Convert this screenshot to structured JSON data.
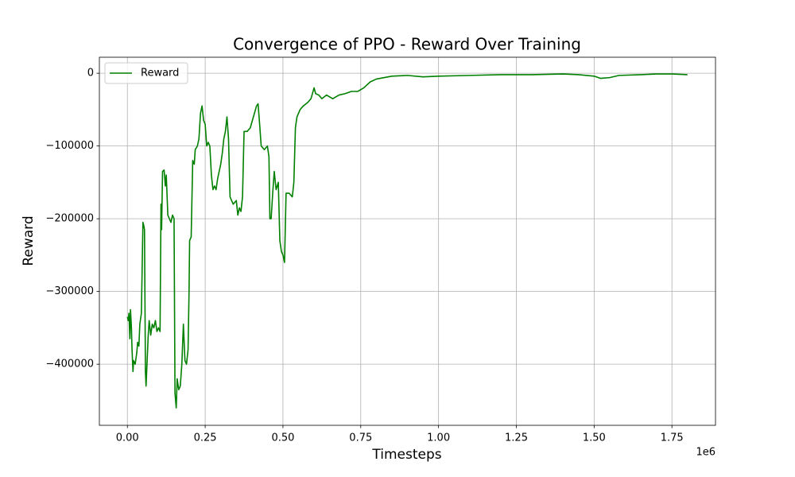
{
  "chart_data": {
    "type": "line",
    "title": "Convergence of PPO - Reward Over Training",
    "x_label": "Timesteps",
    "y_label": "Reward",
    "x_offset_label": "1e6",
    "grid": true,
    "legend": "upper left",
    "xlim": [
      -90000,
      1890000
    ],
    "ylim": [
      -484000,
      22000
    ],
    "xticks": [
      {
        "value": 0,
        "label": "0.00"
      },
      {
        "value": 250000,
        "label": "0.25"
      },
      {
        "value": 500000,
        "label": "0.50"
      },
      {
        "value": 750000,
        "label": "0.75"
      },
      {
        "value": 1000000,
        "label": "1.00"
      },
      {
        "value": 1250000,
        "label": "1.25"
      },
      {
        "value": 1500000,
        "label": "1.50"
      },
      {
        "value": 1750000,
        "label": "1.75"
      }
    ],
    "yticks": [
      0,
      {
        "value": -100000,
        "label": "−100000"
      },
      {
        "value": -200000,
        "label": "−200000"
      },
      {
        "value": -300000,
        "label": "−300000"
      },
      {
        "value": -400000,
        "label": "−400000"
      }
    ],
    "x": [
      0,
      3000,
      5000,
      8000,
      10000,
      13000,
      15000,
      18000,
      20000,
      25000,
      30000,
      33000,
      37000,
      40000,
      45000,
      50000,
      53000,
      55000,
      58000,
      60000,
      63000,
      67000,
      70000,
      75000,
      80000,
      85000,
      90000,
      95000,
      100000,
      105000,
      108000,
      110000,
      113000,
      118000,
      122000,
      125000,
      130000,
      140000,
      145000,
      150000,
      153000,
      157000,
      160000,
      165000,
      170000,
      175000,
      180000,
      185000,
      190000,
      195000,
      198000,
      200000,
      205000,
      210000,
      215000,
      218000,
      225000,
      230000,
      235000,
      240000,
      245000,
      250000,
      255000,
      260000,
      265000,
      270000,
      275000,
      280000,
      285000,
      290000,
      300000,
      305000,
      310000,
      315000,
      320000,
      325000,
      330000,
      340000,
      350000,
      355000,
      360000,
      365000,
      370000,
      375000,
      385000,
      395000,
      405000,
      415000,
      420000,
      425000,
      430000,
      440000,
      450000,
      455000,
      458000,
      462000,
      467000,
      472000,
      478000,
      485000,
      490000,
      495000,
      500000,
      505000,
      510000,
      520000,
      530000,
      535000,
      540000,
      545000,
      555000,
      565000,
      580000,
      590000,
      600000,
      605000,
      615000,
      625000,
      640000,
      660000,
      680000,
      700000,
      720000,
      740000,
      760000,
      780000,
      800000,
      850000,
      900000,
      950000,
      1000000,
      1100000,
      1200000,
      1300000,
      1400000,
      1450000,
      1500000,
      1520000,
      1550000,
      1580000,
      1650000,
      1700000,
      1750000,
      1800000
    ],
    "series": [
      {
        "name": "Reward",
        "color": "#008000",
        "values": [
          -335000,
          -340000,
          -330000,
          -365000,
          -325000,
          -350000,
          -380000,
          -410000,
          -395000,
          -400000,
          -385000,
          -370000,
          -375000,
          -345000,
          -330000,
          -205000,
          -210000,
          -215000,
          -410000,
          -430000,
          -400000,
          -360000,
          -340000,
          -360000,
          -345000,
          -350000,
          -340000,
          -355000,
          -350000,
          -355000,
          -180000,
          -215000,
          -135000,
          -133000,
          -155000,
          -140000,
          -195000,
          -205000,
          -195000,
          -200000,
          -440000,
          -460000,
          -420000,
          -435000,
          -430000,
          -400000,
          -345000,
          -395000,
          -400000,
          -380000,
          -305000,
          -230000,
          -225000,
          -120000,
          -125000,
          -105000,
          -100000,
          -90000,
          -55000,
          -45000,
          -65000,
          -70000,
          -100000,
          -95000,
          -100000,
          -140000,
          -160000,
          -155000,
          -160000,
          -145000,
          -125000,
          -110000,
          -90000,
          -80000,
          -60000,
          -90000,
          -170000,
          -180000,
          -175000,
          -195000,
          -185000,
          -190000,
          -170000,
          -80000,
          -80000,
          -75000,
          -60000,
          -45000,
          -42000,
          -70000,
          -100000,
          -105000,
          -100000,
          -115000,
          -200000,
          -200000,
          -165000,
          -135000,
          -160000,
          -150000,
          -230000,
          -245000,
          -250000,
          -260000,
          -165000,
          -165000,
          -170000,
          -150000,
          -75000,
          -60000,
          -50000,
          -45000,
          -40000,
          -35000,
          -20000,
          -28000,
          -30000,
          -35000,
          -30000,
          -35000,
          -30000,
          -28000,
          -25000,
          -25000,
          -20000,
          -12000,
          -8000,
          -4000,
          -3000,
          -5000,
          -4000,
          -3000,
          -2000,
          -2000,
          -1000,
          -2000,
          -4000,
          -7000,
          -6000,
          -3000,
          -2000,
          -1000,
          -1000,
          -2000
        ]
      }
    ]
  }
}
